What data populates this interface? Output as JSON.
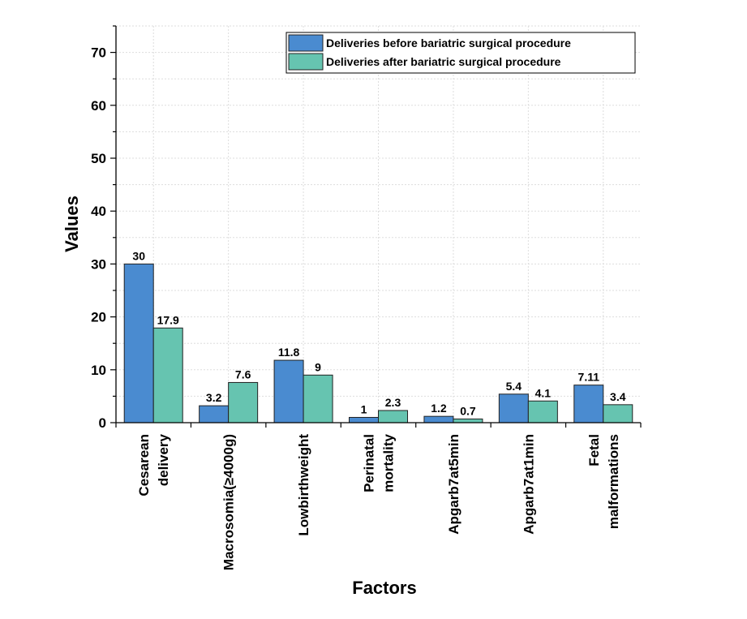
{
  "chart_data": {
    "type": "bar",
    "xlabel": "Factors",
    "ylabel": "Values",
    "ylim": [
      0,
      75
    ],
    "yticks": [
      0,
      10,
      20,
      30,
      40,
      50,
      60,
      70
    ],
    "grid": true,
    "legend_position": "top-right",
    "categories": [
      [
        "Cesarean",
        "delivery"
      ],
      [
        "Macrosomia(≥4000g)"
      ],
      [
        "Lowbirthweight"
      ],
      [
        "Perinatal",
        "mortality"
      ],
      [
        "Apgarb7at5min"
      ],
      [
        "Apgarb7at1min"
      ],
      [
        "Fetal",
        "malformations"
      ]
    ],
    "series": [
      {
        "name": "Deliveries before bariatric surgical procedure",
        "color": "#4a8bd0",
        "values": [
          30,
          3.2,
          11.8,
          1,
          1.2,
          5.4,
          7.11
        ],
        "labels": [
          "30",
          "3.2",
          "11.8",
          "1",
          "1.2",
          "5.4",
          "7.11"
        ]
      },
      {
        "name": "Deliveries after bariatric surgical procedure",
        "color": "#66c4b0",
        "values": [
          17.9,
          7.6,
          9,
          2.3,
          0.7,
          4.1,
          3.4
        ],
        "labels": [
          "17.9",
          "7.6",
          "9",
          "2.3",
          "0.7",
          "4.1",
          "3.4"
        ]
      }
    ]
  }
}
